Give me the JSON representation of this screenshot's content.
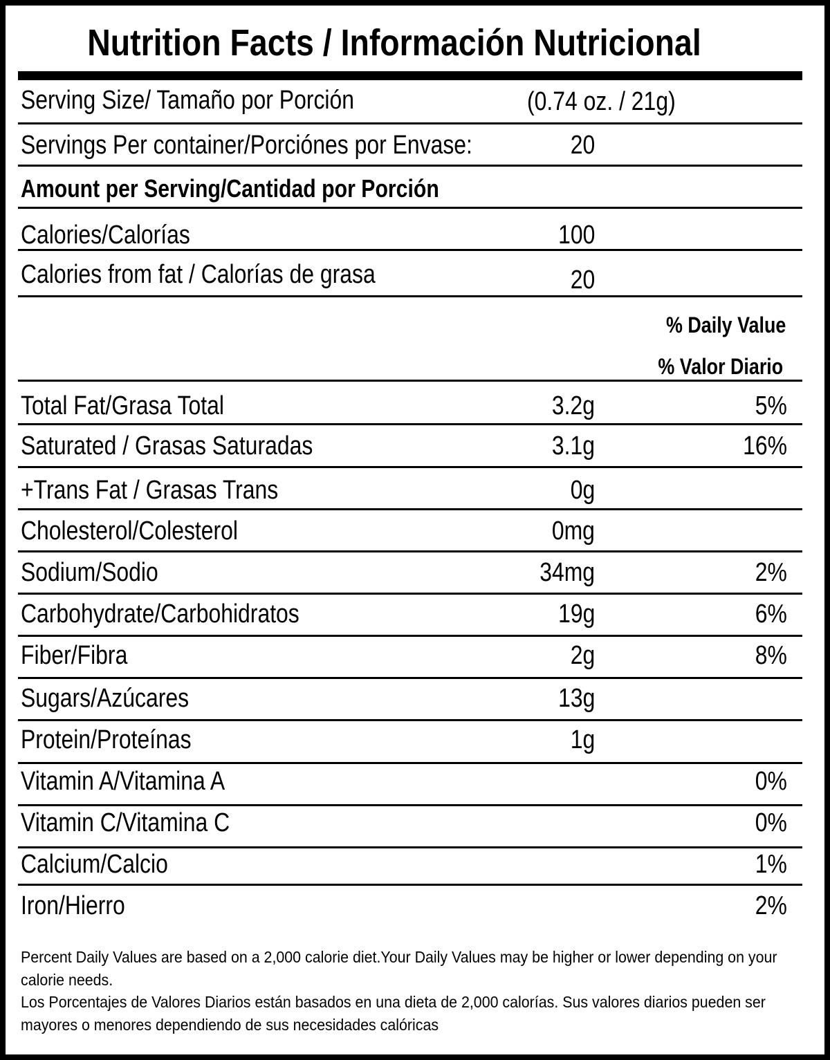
{
  "title": "Nutrition Facts / Información Nutricional",
  "serving_size": {
    "label": "Serving Size/ Tamaño por Porción",
    "value": "(0.74 oz. / 21g)"
  },
  "servings_per_container": {
    "label": "Servings Per container/Porciónes por Envase:",
    "value": "20"
  },
  "amount_per_serving": "Amount per Serving/Cantidad por Porción",
  "calories": {
    "label": "Calories/Calorías",
    "value": "100"
  },
  "calories_from_fat": {
    "label": "Calories from fat / Calorías de grasa",
    "value": "20"
  },
  "daily_value_header": {
    "en": "% Daily Value",
    "es": "% Valor Diario"
  },
  "nutrients": [
    {
      "label": "Total Fat/Grasa Total",
      "amount": "3.2g",
      "dv": "5%"
    },
    {
      "label": "Saturated / Grasas Saturadas",
      "amount": "3.1g",
      "dv": "16%"
    },
    {
      "label": "+Trans Fat / Grasas Trans",
      "amount": "0g",
      "dv": ""
    },
    {
      "label": "Cholesterol/Colesterol",
      "amount": "0mg",
      "dv": ""
    },
    {
      "label": "Sodium/Sodio",
      "amount": "34mg",
      "dv": "2%"
    },
    {
      "label": "Carbohydrate/Carbohidratos",
      "amount": "19g",
      "dv": "6%"
    },
    {
      "label": "Fiber/Fibra",
      "amount": "2g",
      "dv": "8%"
    },
    {
      "label": "Sugars/Azúcares",
      "amount": "13g",
      "dv": ""
    },
    {
      "label": "Protein/Proteínas",
      "amount": "1g",
      "dv": ""
    },
    {
      "label": "Vitamin A/Vitamina A",
      "amount": "",
      "dv": "0%"
    },
    {
      "label": "Vitamin C/Vitamina C",
      "amount": "",
      "dv": "0%"
    },
    {
      "label": "Calcium/Calcio",
      "amount": "",
      "dv": "1%"
    },
    {
      "label": "Iron/Hierro",
      "amount": "",
      "dv": "2%"
    }
  ],
  "footnote": {
    "en": "Percent Daily Values are based on a 2,000 calorie diet.Your Daily Values may be higher or lower depending on your calorie needs.",
    "es": "Los Porcentajes de Valores Diarios están basados en una dieta de 2,000 calorías. Sus valores diarios pueden ser mayores o menores dependiendo de sus necesidades calóricas"
  }
}
